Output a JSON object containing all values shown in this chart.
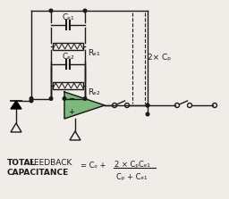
{
  "bg_color": "#f0ede8",
  "line_color": "#1a1a1a",
  "amp_fill": "#7db87d",
  "amp_stroke": "#1a1a1a",
  "cp_label": "2× Cₚ",
  "cf1_label": "Cₑ₁",
  "rf1_label": "Rₑ₁",
  "cf2_label": "Cₑ₂",
  "rf2_label": "Rₑ₂"
}
